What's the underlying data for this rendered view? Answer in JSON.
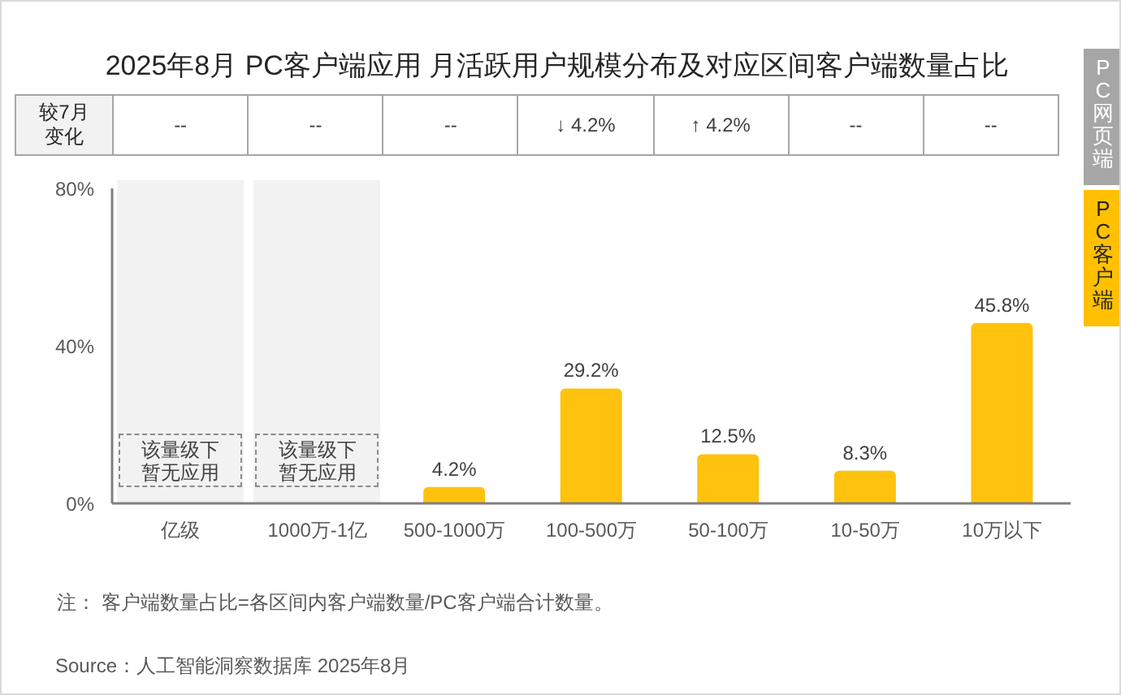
{
  "chart_data": {
    "type": "bar",
    "title": "2025年8月 PC客户端应用 月活跃用户规模分布及对应区间客户端数量占比",
    "categories": [
      "亿级",
      "1000万-1亿",
      "500-1000万",
      "100-500万",
      "50-100万",
      "10-50万",
      "10万以下"
    ],
    "values": [
      null,
      null,
      4.2,
      29.2,
      12.5,
      8.3,
      45.8
    ],
    "color": "#ffc20e",
    "value_labels": [
      null,
      null,
      "4.2%",
      "29.2%",
      "12.5%",
      "8.3%",
      "45.8%"
    ],
    "ylim": [
      0,
      80
    ],
    "yticks": [
      {
        "value": 0,
        "label": "0%"
      },
      {
        "value": 40,
        "label": "40%"
      },
      {
        "value": 80,
        "label": "80%"
      }
    ],
    "bands": [
      {
        "axis": "x",
        "from": "亿级",
        "to": "亿级",
        "label": "该量级下暂无应用",
        "color": "#f2f2f2"
      },
      {
        "axis": "x",
        "from": "1000万-1亿",
        "to": "1000万-1亿",
        "label": "该量级下暂无应用",
        "color": "#f2f2f2"
      }
    ],
    "annotations": [
      "较7月变化",
      "--",
      "--",
      "--",
      "↓ 4.2%",
      "↑ 4.2%",
      "--",
      "--",
      "注： 客户端数量占比=各区间内客户端数量/PC客户端合计数量。",
      "Source：人工智能洞察数据库 2025年8月",
      "PC网页端",
      "PC客户端"
    ]
  }
}
